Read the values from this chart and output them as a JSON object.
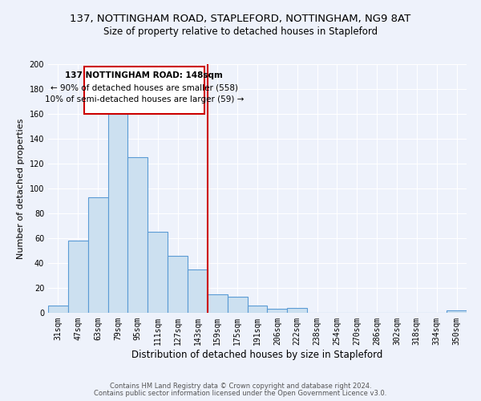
{
  "title_line1": "137, NOTTINGHAM ROAD, STAPLEFORD, NOTTINGHAM, NG9 8AT",
  "title_line2": "Size of property relative to detached houses in Stapleford",
  "xlabel": "Distribution of detached houses by size in Stapleford",
  "ylabel": "Number of detached properties",
  "bar_labels": [
    "31sqm",
    "47sqm",
    "63sqm",
    "79sqm",
    "95sqm",
    "111sqm",
    "127sqm",
    "143sqm",
    "159sqm",
    "175sqm",
    "191sqm",
    "206sqm",
    "222sqm",
    "238sqm",
    "254sqm",
    "270sqm",
    "286sqm",
    "302sqm",
    "318sqm",
    "334sqm",
    "350sqm"
  ],
  "bar_values": [
    6,
    58,
    93,
    160,
    125,
    65,
    46,
    35,
    15,
    13,
    6,
    3,
    4,
    0,
    0,
    0,
    0,
    0,
    0,
    0,
    2
  ],
  "bar_color": "#cce0f0",
  "bar_edge_color": "#5b9bd5",
  "vline_color": "#cc0000",
  "vline_pos": 7.5,
  "ylim": [
    0,
    200
  ],
  "yticks": [
    0,
    20,
    40,
    60,
    80,
    100,
    120,
    140,
    160,
    180,
    200
  ],
  "annotation_title": "137 NOTTINGHAM ROAD: 148sqm",
  "annotation_line2": "← 90% of detached houses are smaller (558)",
  "annotation_line3": "10% of semi-detached houses are larger (59) →",
  "annotation_box_color": "#ffffff",
  "annotation_box_edge": "#cc0000",
  "footer_line1": "Contains HM Land Registry data © Crown copyright and database right 2024.",
  "footer_line2": "Contains public sector information licensed under the Open Government Licence v3.0.",
  "bg_color": "#eef2fb",
  "plot_bg_color": "#eef2fb",
  "title_fontsize": 9.5,
  "subtitle_fontsize": 8.5,
  "xlabel_fontsize": 8.5,
  "ylabel_fontsize": 8,
  "tick_fontsize": 7,
  "ann_fontsize": 7.5,
  "footer_fontsize": 6
}
